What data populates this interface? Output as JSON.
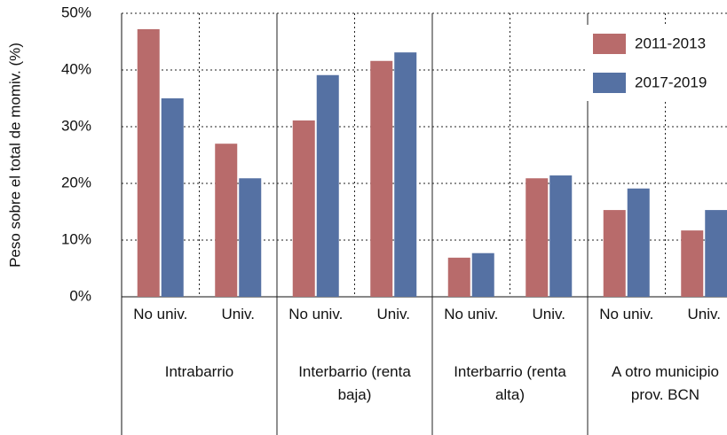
{
  "chart_data": {
    "type": "bar",
    "y_label": "Peso sobre el total de momiv. (%)",
    "categories": [
      "No univ.",
      "Univ.",
      "No univ.",
      "Univ.",
      "No univ.",
      "Univ.",
      "No univ.",
      "Univ."
    ],
    "groups": [
      "Intrabarrio",
      "Interbarrio (renta baja)",
      "Interbarrio (renta alta)",
      "A otro municipio prov. BCN"
    ],
    "series": [
      {
        "name": "2011-2013",
        "color": "#b86b6b",
        "values": [
          47.2,
          27.0,
          31.1,
          41.6,
          6.9,
          20.9,
          15.3,
          11.7
        ]
      },
      {
        "name": "2017-2019",
        "color": "#5571a3",
        "values": [
          35.0,
          20.9,
          39.1,
          43.1,
          7.7,
          21.4,
          19.1,
          15.3
        ]
      }
    ],
    "ylim": [
      0,
      50
    ],
    "yticks": [
      {
        "value": 0,
        "label": "0%"
      },
      {
        "value": 10,
        "label": "10%"
      },
      {
        "value": 20,
        "label": "20%"
      },
      {
        "value": 30,
        "label": "30%"
      },
      {
        "value": 40,
        "label": "40%"
      },
      {
        "value": 50,
        "label": "50%"
      }
    ],
    "grid": true
  }
}
